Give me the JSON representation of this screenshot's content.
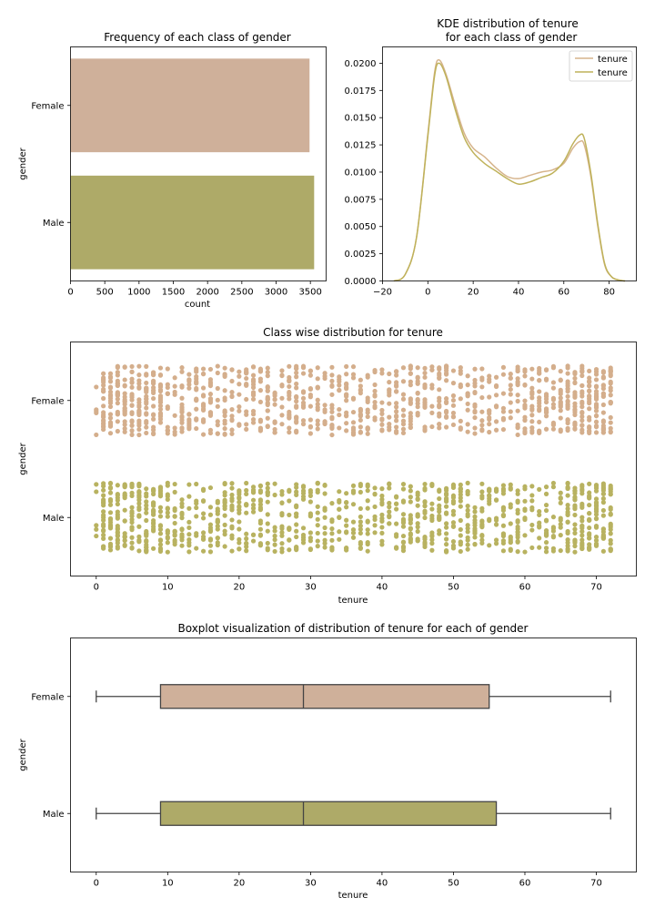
{
  "chart_data": [
    {
      "type": "bar",
      "orientation": "horizontal",
      "title": "Frequency of each class of gender",
      "xlabel": "count",
      "ylabel": "gender",
      "categories": [
        "Female",
        "Male"
      ],
      "values": [
        3488,
        3555
      ],
      "colors": [
        "#cfb09a",
        "#aeaa68"
      ],
      "xlim": [
        0,
        3730
      ],
      "xticks": [
        0,
        500,
        1000,
        1500,
        2000,
        2500,
        3000,
        3500
      ]
    },
    {
      "type": "line",
      "title_lines": [
        "KDE distribution of tenure",
        "for each class of gender"
      ],
      "xlim": [
        -20,
        92
      ],
      "ylim": [
        0,
        0.0215
      ],
      "xticks": [
        -20,
        0,
        20,
        40,
        60,
        80
      ],
      "yticks": [
        "0.0000",
        "0.0025",
        "0.0050",
        "0.0075",
        "0.0100",
        "0.0125",
        "0.0150",
        "0.0175",
        "0.0200"
      ],
      "legend_position": "top-right",
      "series": [
        {
          "name": "tenure",
          "color": "#d6b48c",
          "x": [
            -15,
            -10,
            -5,
            0,
            3,
            5,
            8,
            12,
            16,
            20,
            25,
            30,
            35,
            40,
            45,
            50,
            55,
            60,
            64,
            67,
            69,
            72,
            75,
            78,
            81,
            84,
            87
          ],
          "y": [
            0.0,
            0.0006,
            0.004,
            0.0135,
            0.0192,
            0.0203,
            0.019,
            0.0162,
            0.0136,
            0.0122,
            0.0114,
            0.0104,
            0.0096,
            0.0094,
            0.0097,
            0.01,
            0.0102,
            0.0108,
            0.0122,
            0.0128,
            0.0125,
            0.0095,
            0.005,
            0.0015,
            0.0004,
            0.0001,
            0.0
          ]
        },
        {
          "name": "tenure",
          "color": "#bfb25a",
          "x": [
            -15,
            -10,
            -5,
            0,
            3,
            5,
            8,
            12,
            16,
            20,
            25,
            30,
            35,
            40,
            45,
            50,
            55,
            60,
            64,
            67,
            69,
            72,
            75,
            78,
            81,
            84,
            87
          ],
          "y": [
            0.0,
            0.0006,
            0.004,
            0.0133,
            0.0189,
            0.02,
            0.0188,
            0.0158,
            0.0132,
            0.0118,
            0.0108,
            0.0101,
            0.0094,
            0.0089,
            0.0091,
            0.0095,
            0.0099,
            0.011,
            0.0126,
            0.0134,
            0.0131,
            0.0098,
            0.0052,
            0.0016,
            0.0004,
            0.0001,
            0.0
          ]
        }
      ]
    },
    {
      "type": "scatter",
      "subtype": "strip",
      "title": "Class wise distribution for tenure",
      "xlabel": "tenure",
      "ylabel": "gender",
      "categories": [
        "Female",
        "Male"
      ],
      "colors": [
        "#d4ae8c",
        "#b8b260"
      ],
      "xlim": [
        -3.6,
        75.6
      ],
      "xticks": [
        0,
        10,
        20,
        30,
        40,
        50,
        60,
        70
      ],
      "x_values": [
        0,
        1,
        2,
        3,
        4,
        5,
        6,
        7,
        8,
        9,
        10,
        11,
        12,
        13,
        14,
        15,
        16,
        17,
        18,
        19,
        20,
        21,
        22,
        23,
        24,
        25,
        26,
        27,
        28,
        29,
        30,
        31,
        32,
        33,
        34,
        35,
        36,
        37,
        38,
        39,
        40,
        41,
        42,
        43,
        44,
        45,
        46,
        47,
        48,
        49,
        50,
        51,
        52,
        53,
        54,
        55,
        56,
        57,
        58,
        59,
        60,
        61,
        62,
        63,
        64,
        65,
        66,
        67,
        68,
        69,
        70,
        71,
        72
      ]
    },
    {
      "type": "box",
      "orientation": "horizontal",
      "title": "Boxplot visualization of distribution of tenure for each of gender",
      "xlabel": "tenure",
      "ylabel": "gender",
      "categories": [
        "Female",
        "Male"
      ],
      "colors": [
        "#cfb09a",
        "#aeaa68"
      ],
      "xlim": [
        -3.6,
        75.6
      ],
      "xticks": [
        0,
        10,
        20,
        30,
        40,
        50,
        60,
        70
      ],
      "boxes": [
        {
          "category": "Female",
          "min": 0,
          "q1": 9,
          "median": 29,
          "q3": 55,
          "max": 72
        },
        {
          "category": "Male",
          "min": 0,
          "q1": 9,
          "median": 29,
          "q3": 56,
          "max": 72
        }
      ]
    }
  ]
}
